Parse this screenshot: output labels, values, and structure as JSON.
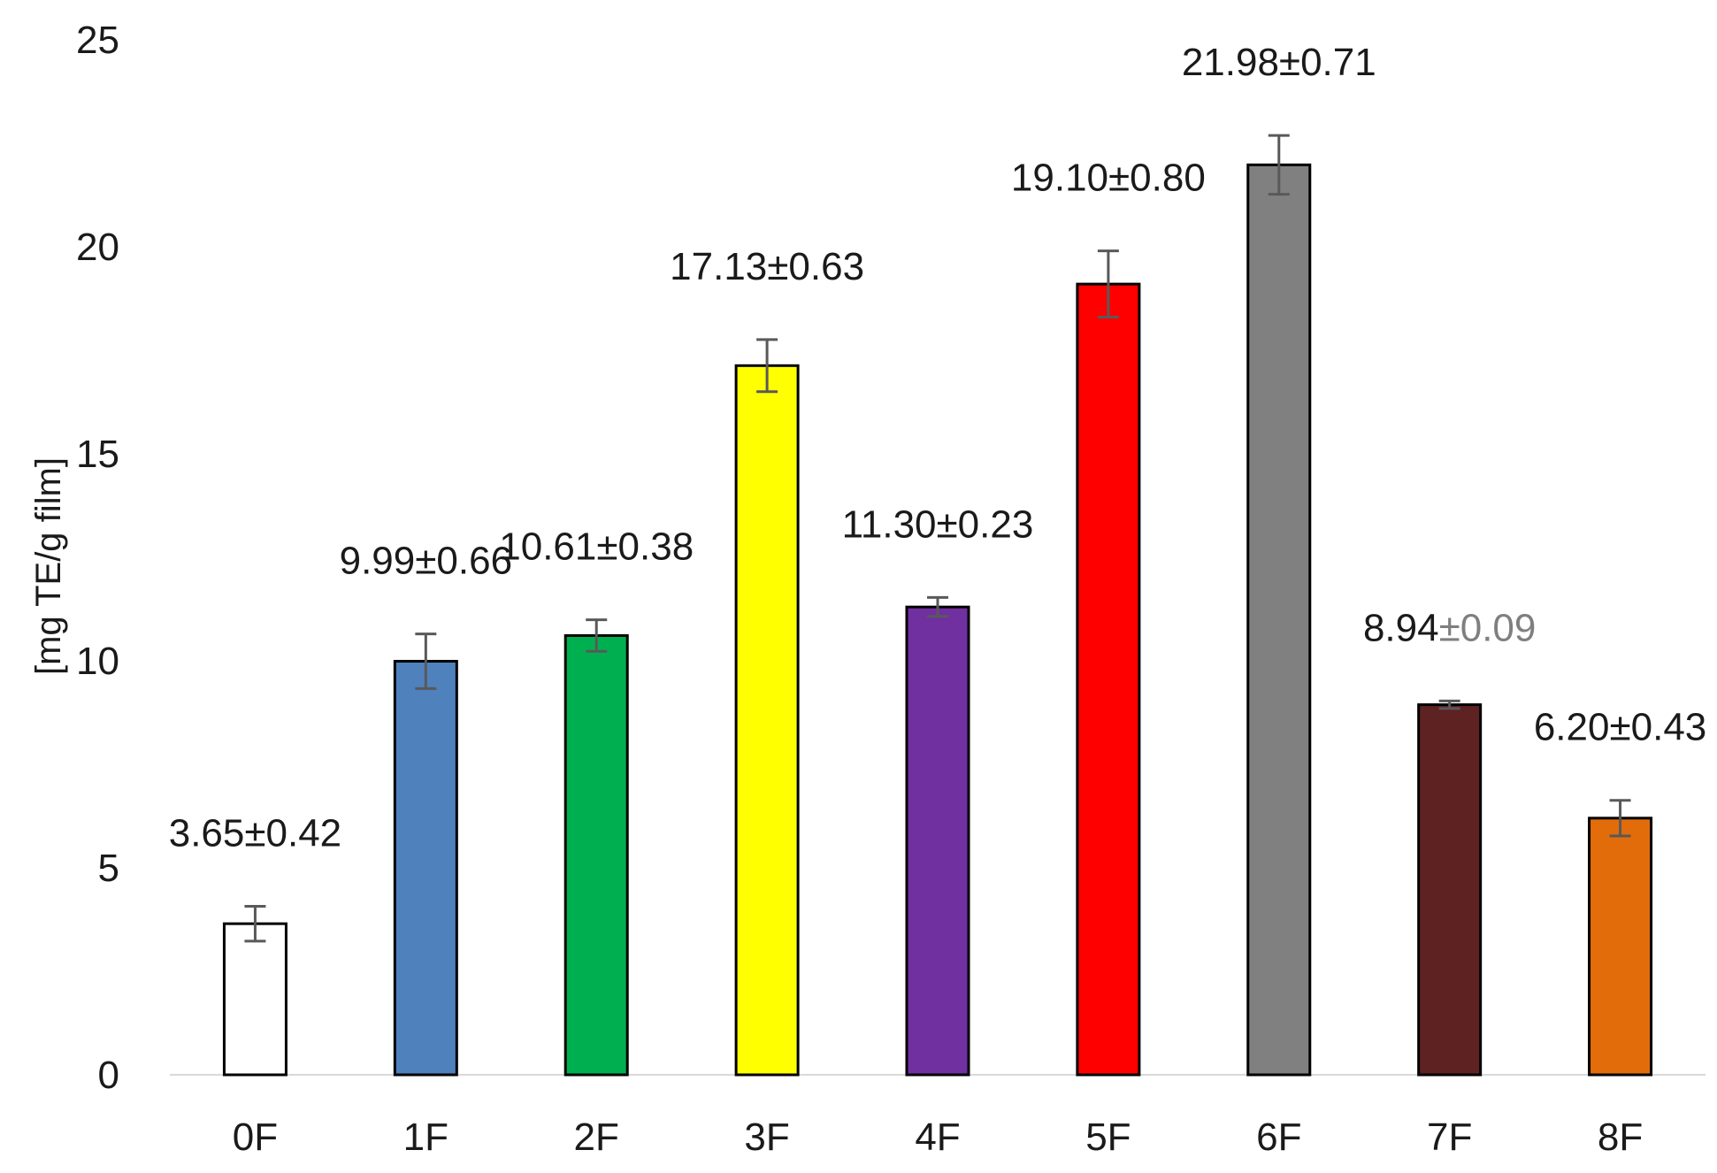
{
  "chart_data": {
    "type": "bar",
    "title": "",
    "xlabel": "",
    "ylabel": "[mg TE/g film]",
    "ylim": [
      0,
      25
    ],
    "yticks": [
      "0",
      "5",
      "10",
      "15",
      "20",
      "25"
    ],
    "grid": false,
    "legend": "none",
    "categories": [
      "0F",
      "1F",
      "2F",
      "3F",
      "4F",
      "5F",
      "6F",
      "7F",
      "8F"
    ],
    "values": [
      3.65,
      9.99,
      10.61,
      17.13,
      11.3,
      19.1,
      21.98,
      8.94,
      6.2
    ],
    "errors": [
      0.42,
      0.66,
      0.38,
      0.63,
      0.23,
      0.8,
      0.71,
      0.09,
      0.43
    ],
    "data_labels": [
      {
        "value": "3.65",
        "error": "±0.42"
      },
      {
        "value": "9.99",
        "error": "±0.66"
      },
      {
        "value": "10.61",
        "error": "±0.38"
      },
      {
        "value": "17.13",
        "error": "±0.63"
      },
      {
        "value": "11.30",
        "error": "±0.23"
      },
      {
        "value": "19.10",
        "error": "±0.80"
      },
      {
        "value": "21.98",
        "error": "±0.71"
      },
      {
        "value": "8.94",
        "error": "±0.09"
      },
      {
        "value": "6.20",
        "error": "±0.43"
      }
    ],
    "colors": [
      "#ffffff",
      "#4f81bd",
      "#00b050",
      "#ffff00",
      "#7030a0",
      "#ff0000",
      "#808080",
      "#5e2222",
      "#e36c0a"
    ]
  }
}
